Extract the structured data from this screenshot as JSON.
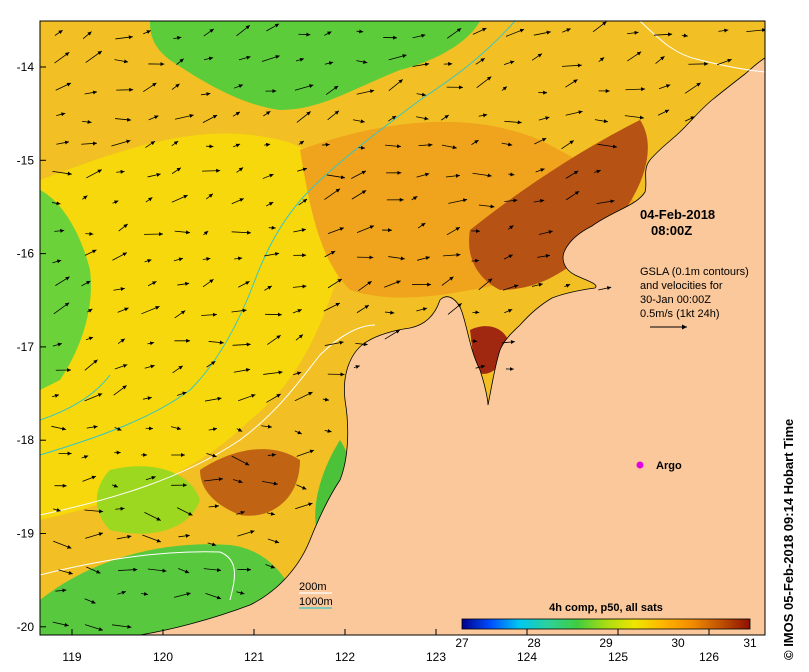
{
  "annotation": {
    "date": "04-Feb-2018",
    "time": "08:00Z",
    "info_lines": [
      "GSLA (0.1m contours)",
      "and velocities for",
      "30-Jan 00:00Z",
      "0.5m/s (1kt 24h)"
    ],
    "argo_label": "Argo"
  },
  "axes": {
    "lon_ticks": [
      "119",
      "120",
      "121",
      "122",
      "123",
      "124",
      "125",
      "126"
    ],
    "lat_ticks": [
      "-14",
      "-15",
      "-16",
      "-17",
      "-18",
      "-19",
      "-20"
    ]
  },
  "legend_bathymetry": {
    "items": [
      {
        "label": "200m",
        "color": "#ffffff"
      },
      {
        "label": "1000m",
        "color": "#34c6c6"
      }
    ]
  },
  "colorbar": {
    "title": "4h comp, p50, all sats",
    "ticks": [
      "27",
      "28",
      "29",
      "30",
      "31"
    ],
    "stops": [
      "#00008c",
      "#0050ff",
      "#00c8f0",
      "#2cd29a",
      "#40cc40",
      "#a8dc14",
      "#f0e600",
      "#ffb400",
      "#f08c00",
      "#c05000",
      "#8c1000"
    ]
  },
  "colors": {
    "land": "#fbc89b",
    "warm_sst": "#f0a01e",
    "hot_sst": "#b44a10",
    "green_sst": "#52c83e",
    "argo_marker": "#e000e0"
  },
  "credit": "© IMOS 05-Feb-2018 09:14 Hobart Time"
}
